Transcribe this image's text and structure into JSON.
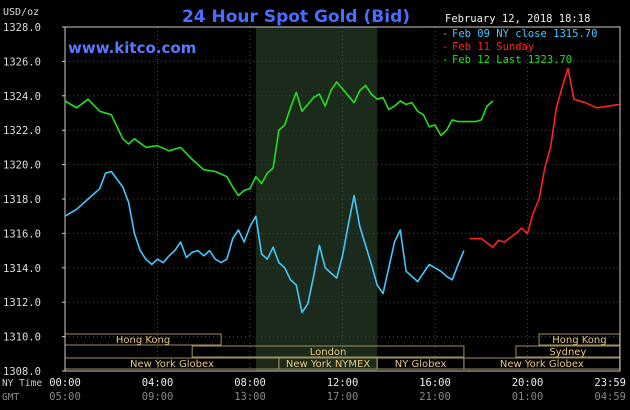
{
  "chart_data": {
    "type": "line",
    "title": "24 Hour Spot Gold (Bid)",
    "watermark": "www.kitco.com",
    "timestamp": "February 12, 2018 18:18",
    "unit_label": "USD/oz",
    "ylim": [
      1308,
      1328
    ],
    "yticks": [
      "1328.0",
      "1326.0",
      "1324.0",
      "1322.0",
      "1320.0",
      "1318.0",
      "1316.0",
      "1314.0",
      "1312.0",
      "1310.0",
      "1308.0"
    ],
    "xticks_ny": [
      "00:00",
      "04:00",
      "08:00",
      "12:00",
      "16:00",
      "20:00",
      "23:59"
    ],
    "xticks_gmt": [
      "05:00",
      "09:00",
      "13:00",
      "17:00",
      "21:00",
      "01:00",
      "04:59"
    ],
    "xrow_labels": [
      "NY Time",
      "GMT"
    ],
    "legend": [
      {
        "text": "Feb 09 NY close 1315.70",
        "color": "#40c8ff"
      },
      {
        "text": "Feb 11 Sunday",
        "color": "#ff2020"
      },
      {
        "text": "Feb 12 Last 1323.70",
        "color": "#20e020"
      }
    ],
    "sessions": [
      {
        "label": "Hong Kong",
        "row": 0,
        "start": 0,
        "end": 6.75
      },
      {
        "label": "Hong Kong",
        "row": 0,
        "start": 20.5,
        "end": 23.99
      },
      {
        "label": "London",
        "row": 1,
        "start": 5.5,
        "end": 17.25
      },
      {
        "label": "Sydney",
        "row": 1,
        "start": 19.5,
        "end": 23.99
      },
      {
        "label": "New York Globex",
        "row": 2,
        "start": 0,
        "end": 9.25
      },
      {
        "label": "New York NYMEX",
        "row": 2,
        "start": 9.25,
        "end": 13.5
      },
      {
        "label": "NY Globex",
        "row": 2,
        "start": 13.5,
        "end": 17.25
      },
      {
        "label": "New York Globex",
        "row": 2,
        "start": 17.25,
        "end": 23.99
      }
    ],
    "highlight_hours": [
      8.25,
      13.5
    ],
    "series": [
      {
        "name": "Feb 09 NY close 1315.70",
        "color": "#40c8ff",
        "x": [
          0,
          0.5,
          1,
          1.5,
          1.75,
          2,
          2.5,
          2.75,
          3,
          3.25,
          3.5,
          3.75,
          4,
          4.25,
          4.5,
          4.75,
          5,
          5.25,
          5.5,
          5.75,
          6,
          6.25,
          6.5,
          6.75,
          7,
          7.25,
          7.5,
          7.75,
          8,
          8.25,
          8.5,
          8.75,
          9,
          9.25,
          9.5,
          9.75,
          10,
          10.25,
          10.5,
          10.75,
          11,
          11.25,
          11.5,
          11.75,
          12,
          12.25,
          12.5,
          12.75,
          13,
          13.25,
          13.5,
          13.75,
          14,
          14.25,
          14.5,
          14.75,
          15,
          15.25,
          15.5,
          15.75,
          16,
          16.25,
          16.5,
          16.75,
          17,
          17.25
        ],
        "y": [
          1317.0,
          1317.4,
          1318.0,
          1318.6,
          1319.5,
          1319.6,
          1318.7,
          1317.8,
          1316.0,
          1315.0,
          1314.5,
          1314.2,
          1314.5,
          1314.3,
          1314.7,
          1315.0,
          1315.5,
          1314.6,
          1314.9,
          1315.0,
          1314.7,
          1315.0,
          1314.5,
          1314.3,
          1314.5,
          1315.7,
          1316.2,
          1315.5,
          1316.4,
          1317.0,
          1314.8,
          1314.5,
          1315.2,
          1314.3,
          1314.0,
          1313.3,
          1313.0,
          1311.4,
          1311.9,
          1313.5,
          1315.3,
          1314.0,
          1313.7,
          1313.4,
          1314.7,
          1316.5,
          1318.2,
          1316.4,
          1315.3,
          1314.2,
          1313.0,
          1312.5,
          1314.0,
          1315.5,
          1316.2,
          1313.8,
          1313.5,
          1313.2,
          1313.7,
          1314.2,
          1314.0,
          1313.8,
          1313.5,
          1313.3,
          1314.2,
          1315.0
        ]
      },
      {
        "name": "Feb 11 Sunday",
        "color": "#ff2020",
        "x": [
          17.5,
          18,
          18.5,
          18.75,
          19,
          19.5,
          19.75,
          20,
          20.25,
          20.5,
          20.75,
          21,
          21.25,
          21.5,
          21.75,
          22,
          22.5,
          23,
          23.5,
          23.99
        ],
        "y": [
          1315.7,
          1315.7,
          1315.2,
          1315.6,
          1315.5,
          1316.0,
          1316.3,
          1316.0,
          1317.2,
          1318.0,
          1319.8,
          1321.0,
          1323.3,
          1324.5,
          1325.6,
          1323.8,
          1323.6,
          1323.3,
          1323.4,
          1323.5
        ]
      },
      {
        "name": "Feb 12 Last 1323.70",
        "color": "#20e020",
        "x": [
          0,
          0.5,
          1,
          1.5,
          2,
          2.5,
          2.75,
          3,
          3.5,
          4,
          4.5,
          5,
          5.5,
          6,
          6.5,
          7,
          7.25,
          7.5,
          7.75,
          8,
          8.25,
          8.5,
          8.75,
          9,
          9.25,
          9.5,
          9.75,
          10,
          10.25,
          10.5,
          10.75,
          11,
          11.25,
          11.5,
          11.75,
          12,
          12.25,
          12.5,
          12.75,
          13,
          13.25,
          13.5,
          13.75,
          14,
          14.25,
          14.5,
          14.75,
          15,
          15.25,
          15.5,
          15.75,
          16,
          16.25,
          16.5,
          16.75,
          17,
          17.25,
          17.75,
          18,
          18.25,
          18.5
        ],
        "y": [
          1323.7,
          1323.3,
          1323.8,
          1323.1,
          1322.9,
          1321.5,
          1321.2,
          1321.5,
          1321.0,
          1321.1,
          1320.8,
          1321.0,
          1320.3,
          1319.7,
          1319.6,
          1319.3,
          1318.7,
          1318.2,
          1318.5,
          1318.6,
          1319.3,
          1318.9,
          1319.5,
          1319.8,
          1322.0,
          1322.3,
          1323.3,
          1324.2,
          1323.1,
          1323.5,
          1323.9,
          1324.1,
          1323.4,
          1324.3,
          1324.8,
          1324.4,
          1324.0,
          1323.6,
          1324.3,
          1324.6,
          1324.1,
          1323.8,
          1323.9,
          1323.2,
          1323.4,
          1323.7,
          1323.5,
          1323.6,
          1323.1,
          1322.9,
          1322.2,
          1322.3,
          1321.7,
          1322.0,
          1322.6,
          1322.5,
          1322.5,
          1322.5,
          1322.6,
          1323.4,
          1323.7
        ]
      }
    ]
  }
}
